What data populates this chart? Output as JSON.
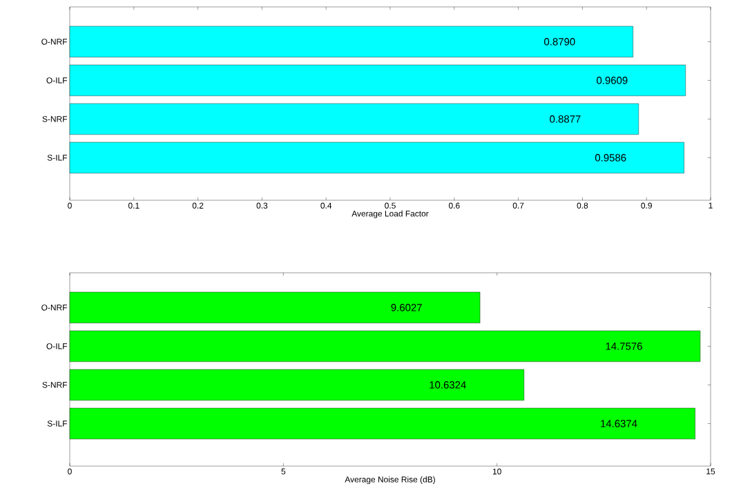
{
  "chart_data": [
    {
      "type": "bar",
      "orientation": "horizontal",
      "categories": [
        "O-NRF",
        "O-ILF",
        "S-NRF",
        "S-ILF"
      ],
      "values": [
        0.879,
        0.9609,
        0.8877,
        0.9586
      ],
      "value_labels": [
        "0.8790",
        "0.9609",
        "0.8877",
        "0.9586"
      ],
      "color": "#00ffff",
      "xlim": [
        0,
        1
      ],
      "xticks": [
        0,
        0.1,
        0.2,
        0.3,
        0.4,
        0.5,
        0.6,
        0.7,
        0.8,
        0.9,
        1
      ],
      "xlabel": "Average Load Factor"
    },
    {
      "type": "bar",
      "orientation": "horizontal",
      "categories": [
        "O-NRF",
        "O-ILF",
        "S-NRF",
        "S-ILF"
      ],
      "values": [
        9.6027,
        14.7576,
        10.6324,
        14.6374
      ],
      "value_labels": [
        "9.6027",
        "14.7576",
        "10.6324",
        "14.6374"
      ],
      "color": "#00ff00",
      "xlim": [
        0,
        15
      ],
      "xticks": [
        0,
        5,
        10,
        15
      ],
      "xlabel": "Average Noise Rise (dB)"
    }
  ]
}
